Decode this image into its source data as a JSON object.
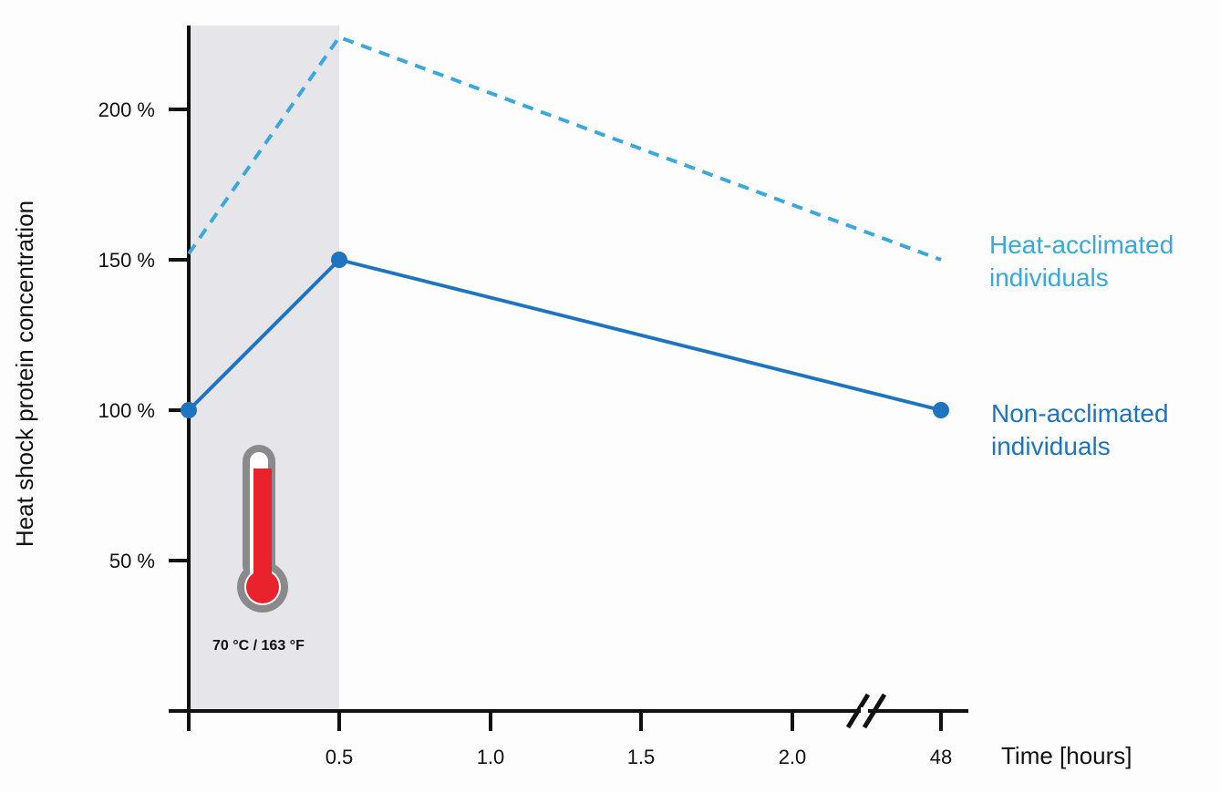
{
  "chart_data": {
    "type": "line",
    "xlabel": "Time [hours]",
    "ylabel": "Heat shock protein concentration",
    "x_ticks": [
      "0.5",
      "1.0",
      "1.5",
      "2.0",
      "48"
    ],
    "y_ticks": [
      "50 %",
      "100 %",
      "150 %",
      "200 %"
    ],
    "ylim": [
      0,
      228
    ],
    "x_axis_break": "between 2.0 and 48",
    "grid": false,
    "highlight": {
      "x_range": [
        0,
        0.5
      ],
      "label": "70 °C / 163 °F",
      "icon": "thermometer-icon"
    },
    "series": [
      {
        "name": "Heat-acclimated individuals",
        "label_lines": [
          "Heat-acclimated",
          "individuals"
        ],
        "style": "dashed",
        "color": "#3aa8dc",
        "markers": false,
        "points": [
          {
            "x": "0",
            "y": 152
          },
          {
            "x": "0.5",
            "y": 224
          },
          {
            "x": "48",
            "y": 150
          }
        ]
      },
      {
        "name": "Non-acclimated individuals",
        "label_lines": [
          "Non-acclimated",
          "individuals"
        ],
        "style": "solid",
        "color": "#1f74bf",
        "markers": true,
        "points": [
          {
            "x": "0",
            "y": 100
          },
          {
            "x": "0.5",
            "y": 150
          },
          {
            "x": "48",
            "y": 100
          }
        ]
      }
    ]
  }
}
